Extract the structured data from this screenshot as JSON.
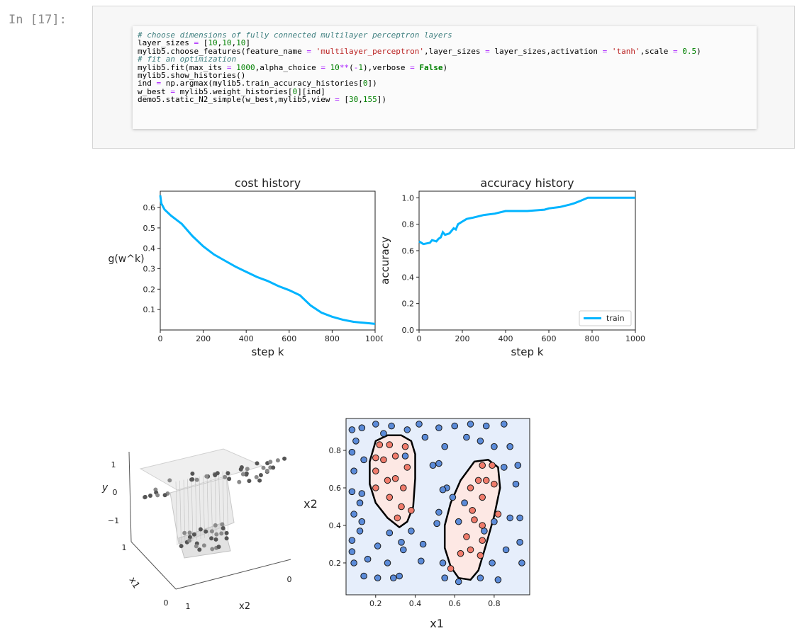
{
  "cell": {
    "prompt": "In [17]:",
    "code_lines": [
      [
        {
          "t": "# choose dimensions of fully connected multilayer perceptron layers",
          "c": "cm"
        }
      ],
      [
        {
          "t": "layer_sizes "
        },
        {
          "t": "=",
          "c": "op"
        },
        {
          "t": " ["
        },
        {
          "t": "10",
          "c": "nu"
        },
        {
          "t": ","
        },
        {
          "t": "10",
          "c": "nu"
        },
        {
          "t": ","
        },
        {
          "t": "10",
          "c": "nu"
        },
        {
          "t": "]"
        }
      ],
      [
        {
          "t": "mylib5.choose_features(feature_name "
        },
        {
          "t": "=",
          "c": "op"
        },
        {
          "t": " "
        },
        {
          "t": "'multilayer_perceptron'",
          "c": "st"
        },
        {
          "t": ",layer_sizes "
        },
        {
          "t": "=",
          "c": "op"
        },
        {
          "t": " layer_sizes,activation "
        },
        {
          "t": "=",
          "c": "op"
        },
        {
          "t": " "
        },
        {
          "t": "'tanh'",
          "c": "st"
        },
        {
          "t": ",scale "
        },
        {
          "t": "=",
          "c": "op"
        },
        {
          "t": " "
        },
        {
          "t": "0.5",
          "c": "nu"
        },
        {
          "t": ")"
        }
      ],
      [
        {
          "t": "# fit an optimization",
          "c": "cm"
        }
      ],
      [
        {
          "t": "mylib5.fit(max_its "
        },
        {
          "t": "=",
          "c": "op"
        },
        {
          "t": " "
        },
        {
          "t": "1000",
          "c": "nu"
        },
        {
          "t": ",alpha_choice "
        },
        {
          "t": "=",
          "c": "op"
        },
        {
          "t": " "
        },
        {
          "t": "10",
          "c": "nu"
        },
        {
          "t": "**",
          "c": "op"
        },
        {
          "t": "("
        },
        {
          "t": "-",
          "c": "op"
        },
        {
          "t": "1",
          "c": "nu"
        },
        {
          "t": "),verbose "
        },
        {
          "t": "=",
          "c": "op"
        },
        {
          "t": " "
        },
        {
          "t": "False",
          "c": "kw"
        },
        {
          "t": ")"
        }
      ],
      [
        {
          "t": "mylib5.show_histories()"
        }
      ],
      [
        {
          "t": "ind "
        },
        {
          "t": "=",
          "c": "op"
        },
        {
          "t": " np.argmax(mylib5.train_accuracy_histories["
        },
        {
          "t": "0",
          "c": "nu"
        },
        {
          "t": "])"
        }
      ],
      [
        {
          "t": "w_best "
        },
        {
          "t": "=",
          "c": "op"
        },
        {
          "t": " mylib5.weight_histories["
        },
        {
          "t": "0",
          "c": "nu"
        },
        {
          "t": "][ind]"
        }
      ],
      [
        {
          "t": "demo5.static_N2_simple(w_best,mylib5,view "
        },
        {
          "t": "=",
          "c": "op"
        },
        {
          "t": " ["
        },
        {
          "t": "30",
          "c": "nu"
        },
        {
          "t": ","
        },
        {
          "t": "155",
          "c": "nu"
        },
        {
          "t": "])"
        }
      ]
    ]
  },
  "colors": {
    "line": "#00b4ff",
    "blue_pt": "#5b8bd9",
    "red_pt": "#f07b6b",
    "region_blue": "#e6eefb",
    "region_red": "#fde8e4"
  },
  "chart_data": [
    {
      "type": "line",
      "title": "cost history",
      "xlabel": "step k",
      "ylabel": "g(w^k)",
      "xlim": [
        0,
        1000
      ],
      "ylim": [
        0.0,
        0.68
      ],
      "xticks": [
        "0",
        "200",
        "400",
        "600",
        "800",
        "1000"
      ],
      "yticks": [
        "0.1",
        "0.2",
        "0.3",
        "0.4",
        "0.5",
        "0.6"
      ],
      "x": [
        0,
        5,
        20,
        50,
        100,
        150,
        200,
        250,
        300,
        350,
        400,
        450,
        500,
        550,
        600,
        650,
        700,
        750,
        800,
        850,
        900,
        950,
        1000
      ],
      "values": [
        0.66,
        0.62,
        0.59,
        0.56,
        0.52,
        0.46,
        0.41,
        0.37,
        0.34,
        0.31,
        0.285,
        0.26,
        0.24,
        0.215,
        0.195,
        0.17,
        0.12,
        0.085,
        0.065,
        0.05,
        0.04,
        0.035,
        0.03
      ]
    },
    {
      "type": "line",
      "title": "accuracy history",
      "xlabel": "step k",
      "ylabel": "accuracy",
      "xlim": [
        0,
        1000
      ],
      "ylim": [
        0.0,
        1.05
      ],
      "xticks": [
        "0",
        "200",
        "400",
        "600",
        "800",
        "1000"
      ],
      "yticks": [
        "0.0",
        "0.2",
        "0.4",
        "0.6",
        "0.8",
        "1.0"
      ],
      "legend": "train",
      "legend_position": "bottom-right",
      "x": [
        0,
        10,
        20,
        50,
        60,
        80,
        90,
        100,
        110,
        120,
        140,
        150,
        160,
        170,
        180,
        200,
        220,
        250,
        300,
        350,
        400,
        500,
        580,
        600,
        650,
        700,
        720,
        750,
        780,
        800,
        1000
      ],
      "values": [
        0.67,
        0.66,
        0.65,
        0.66,
        0.68,
        0.67,
        0.69,
        0.7,
        0.74,
        0.72,
        0.73,
        0.75,
        0.77,
        0.76,
        0.8,
        0.82,
        0.84,
        0.85,
        0.87,
        0.88,
        0.9,
        0.9,
        0.91,
        0.92,
        0.93,
        0.95,
        0.96,
        0.98,
        1.0,
        1.0,
        1.0
      ]
    },
    {
      "type": "scatter",
      "subtype": "3d",
      "xlabel": "x2",
      "ylabel": "x1",
      "zlabel": "y",
      "zticks": [
        "1",
        "0",
        "−1"
      ],
      "x1_ticks": [
        "1",
        "0"
      ],
      "x2_ticks": [
        "1",
        "0"
      ],
      "view": [
        30,
        155
      ]
    },
    {
      "type": "scatter",
      "xlabel": "x1",
      "ylabel": "x2",
      "xlim": [
        0.05,
        0.98
      ],
      "ylim": [
        0.03,
        0.97
      ],
      "xticks": [
        "0.2",
        "0.4",
        "0.6",
        "0.8"
      ],
      "yticks": [
        "0.2",
        "0.4",
        "0.6",
        "0.8"
      ],
      "blue_points": [
        [
          0.08,
          0.91
        ],
        [
          0.13,
          0.92
        ],
        [
          0.2,
          0.94
        ],
        [
          0.28,
          0.93
        ],
        [
          0.36,
          0.91
        ],
        [
          0.42,
          0.94
        ],
        [
          0.52,
          0.92
        ],
        [
          0.6,
          0.93
        ],
        [
          0.68,
          0.94
        ],
        [
          0.76,
          0.93
        ],
        [
          0.85,
          0.94
        ],
        [
          0.24,
          0.89
        ],
        [
          0.45,
          0.87
        ],
        [
          0.55,
          0.82
        ],
        [
          0.66,
          0.87
        ],
        [
          0.73,
          0.85
        ],
        [
          0.8,
          0.82
        ],
        [
          0.88,
          0.82
        ],
        [
          0.1,
          0.85
        ],
        [
          0.08,
          0.79
        ],
        [
          0.09,
          0.69
        ],
        [
          0.14,
          0.75
        ],
        [
          0.08,
          0.58
        ],
        [
          0.13,
          0.57
        ],
        [
          0.12,
          0.52
        ],
        [
          0.09,
          0.46
        ],
        [
          0.13,
          0.42
        ],
        [
          0.08,
          0.32
        ],
        [
          0.12,
          0.37
        ],
        [
          0.09,
          0.2
        ],
        [
          0.16,
          0.22
        ],
        [
          0.08,
          0.26
        ],
        [
          0.14,
          0.13
        ],
        [
          0.21,
          0.12
        ],
        [
          0.29,
          0.12
        ],
        [
          0.21,
          0.29
        ],
        [
          0.27,
          0.36
        ],
        [
          0.33,
          0.31
        ],
        [
          0.38,
          0.37
        ],
        [
          0.34,
          0.27
        ],
        [
          0.26,
          0.2
        ],
        [
          0.32,
          0.13
        ],
        [
          0.44,
          0.3
        ],
        [
          0.51,
          0.41
        ],
        [
          0.43,
          0.21
        ],
        [
          0.54,
          0.2
        ],
        [
          0.55,
          0.12
        ],
        [
          0.62,
          0.1
        ],
        [
          0.73,
          0.12
        ],
        [
          0.82,
          0.11
        ],
        [
          0.79,
          0.2
        ],
        [
          0.86,
          0.27
        ],
        [
          0.93,
          0.31
        ],
        [
          0.88,
          0.44
        ],
        [
          0.93,
          0.44
        ],
        [
          0.91,
          0.62
        ],
        [
          0.94,
          0.2
        ],
        [
          0.92,
          0.72
        ],
        [
          0.85,
          0.71
        ],
        [
          0.56,
          0.6
        ],
        [
          0.52,
          0.47
        ],
        [
          0.54,
          0.59
        ],
        [
          0.49,
          0.72
        ],
        [
          0.35,
          0.77
        ],
        [
          0.59,
          0.55
        ],
        [
          0.65,
          0.52
        ],
        [
          0.62,
          0.42
        ],
        [
          0.75,
          0.37
        ],
        [
          0.8,
          0.42
        ],
        [
          0.52,
          0.73
        ]
      ],
      "red_points": [
        [
          0.22,
          0.83
        ],
        [
          0.27,
          0.83
        ],
        [
          0.35,
          0.82
        ],
        [
          0.2,
          0.76
        ],
        [
          0.24,
          0.75
        ],
        [
          0.3,
          0.77
        ],
        [
          0.36,
          0.71
        ],
        [
          0.2,
          0.69
        ],
        [
          0.26,
          0.64
        ],
        [
          0.3,
          0.65
        ],
        [
          0.34,
          0.6
        ],
        [
          0.2,
          0.6
        ],
        [
          0.27,
          0.55
        ],
        [
          0.33,
          0.5
        ],
        [
          0.31,
          0.44
        ],
        [
          0.38,
          0.48
        ],
        [
          0.74,
          0.72
        ],
        [
          0.79,
          0.72
        ],
        [
          0.72,
          0.64
        ],
        [
          0.76,
          0.64
        ],
        [
          0.8,
          0.62
        ],
        [
          0.68,
          0.6
        ],
        [
          0.74,
          0.55
        ],
        [
          0.69,
          0.48
        ],
        [
          0.7,
          0.43
        ],
        [
          0.74,
          0.4
        ],
        [
          0.66,
          0.34
        ],
        [
          0.74,
          0.32
        ],
        [
          0.68,
          0.27
        ],
        [
          0.73,
          0.24
        ],
        [
          0.63,
          0.25
        ],
        [
          0.58,
          0.17
        ],
        [
          0.82,
          0.46
        ]
      ]
    }
  ]
}
